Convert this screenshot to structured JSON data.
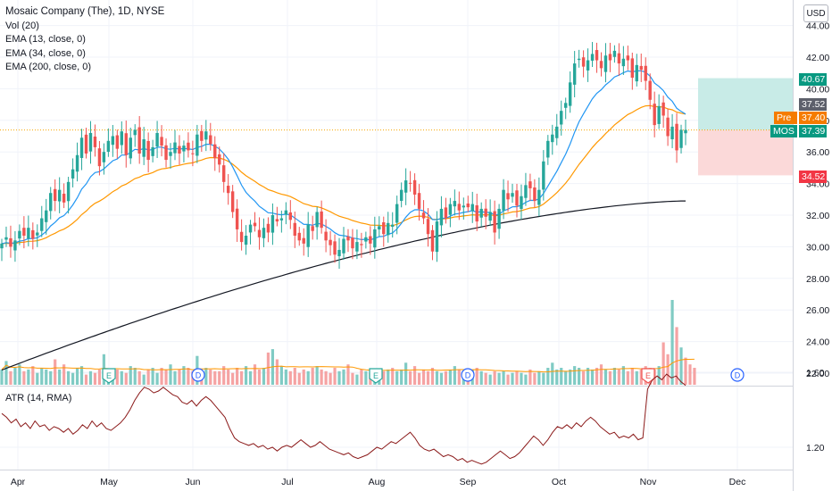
{
  "legend": {
    "title": "Mosaic Company (The), 1D, NYSE",
    "indicators": [
      "Vol (20)",
      "EMA (13, close, 0)",
      "EMA (34, close, 0)",
      "EMA (200, close, 0)"
    ],
    "atr": "ATR (14, RMA)"
  },
  "currency": "USD",
  "tags": {
    "target": "40.67",
    "ema_upper": "37.52",
    "pre_label": "Pre",
    "pre_value": "37.40",
    "symbol": "MOS",
    "last": "37.39",
    "stop": "34.52"
  },
  "colors": {
    "up": "#26a69a",
    "down": "#ef5350",
    "vol_up": "#80cbc4",
    "vol_down": "#f5a3a3",
    "ema13": "#2196f3",
    "ema34": "#ff9800",
    "ema200": "#131722",
    "atr": "#8b1a1a",
    "target_zone": "#c8ebe7",
    "stop_zone": "#fbd9d9"
  },
  "chart_data": [
    {
      "type": "candlestick",
      "title": "Mosaic Company (The), 1D, NYSE",
      "y_ticks": [
        22.0,
        24.0,
        26.0,
        28.0,
        30.0,
        32.0,
        34.0,
        36.0,
        38.0,
        40.0,
        42.0,
        44.0
      ],
      "ylim": [
        21.3,
        44.5
      ],
      "x_labels": [
        "Apr",
        "May",
        "Jun",
        "Jul",
        "Aug",
        "Sep",
        "Oct",
        "Nov",
        "Dec"
      ],
      "close_series": [
        30.2,
        30.6,
        30.0,
        30.4,
        31.0,
        30.7,
        31.2,
        30.5,
        30.9,
        31.8,
        32.3,
        33.4,
        32.9,
        33.6,
        32.8,
        34.1,
        34.9,
        35.8,
        36.9,
        35.9,
        37.2,
        36.3,
        35.1,
        36.0,
        36.7,
        37.0,
        36.2,
        37.3,
        35.8,
        36.9,
        37.4,
        35.9,
        36.8,
        35.5,
        36.3,
        37.2,
        36.4,
        35.5,
        36.0,
        36.6,
        35.9,
        36.4,
        36.1,
        35.9,
        37.1,
        36.7,
        37.3,
        36.5,
        35.6,
        35.2,
        34.1,
        33.4,
        32.2,
        31.1,
        30.3,
        30.7,
        31.4,
        31.3,
        30.6,
        31.2,
        30.9,
        32.0,
        31.6,
        31.8,
        32.3,
        31.7,
        30.7,
        30.4,
        30.2,
        31.4,
        31.0,
        32.2,
        31.2,
        30.4,
        30.1,
        29.5,
        29.8,
        30.5,
        30.4,
        29.9,
        30.3,
        30.1,
        30.6,
        30.2,
        31.1,
        31.3,
        30.8,
        31.5,
        31.4,
        32.7,
        33.6,
        34.2,
        34.0,
        33.3,
        32.4,
        31.8,
        30.8,
        29.7,
        31.6,
        32.4,
        31.8,
        32.7,
        32.9,
        32.3,
        32.6,
        32.5,
        32.7,
        31.6,
        32.4,
        31.9,
        32.2,
        30.9,
        32.4,
        33.6,
        33.0,
        33.4,
        32.6,
        33.2,
        33.9,
        33.7,
        32.9,
        33.6,
        35.4,
        36.7,
        37.1,
        37.6,
        38.6,
        39.1,
        40.4,
        41.6,
        41.9,
        41.4,
        41.8,
        42.2,
        41.8,
        41.3,
        42.1,
        41.8,
        42.4,
        41.6,
        41.9,
        41.8,
        40.7,
        41.5,
        41.2,
        40.5,
        39.3,
        37.7,
        38.9,
        38.3,
        37.0,
        37.6,
        36.1,
        37.4,
        37.39
      ],
      "ema13_endpoints": [
        31.2,
        37.5
      ],
      "ema34_endpoints": [
        30.6,
        38.1
      ],
      "ema200_endpoints": [
        22.2,
        32.9
      ],
      "position": {
        "target": 40.67,
        "entry": 37.39,
        "stop": 34.52
      }
    },
    {
      "type": "bar",
      "title": "Vol (20)",
      "values": [
        0.9,
        1.4,
        0.8,
        1.0,
        1.2,
        0.8,
        0.9,
        1.1,
        0.7,
        1.0,
        0.9,
        0.8,
        1.5,
        0.9,
        1.2,
        0.8,
        0.7,
        1.0,
        1.1,
        0.6,
        0.8,
        0.7,
        0.9,
        1.8,
        0.8,
        0.7,
        0.9,
        0.8,
        0.7,
        1.1,
        1.0,
        0.8,
        0.6,
        0.9,
        1.0,
        0.7,
        1.0,
        0.9,
        1.2,
        0.8,
        0.9,
        1.1,
        1.0,
        0.8,
        1.7,
        0.7,
        1.0,
        0.9,
        0.8,
        0.8,
        1.1,
        0.9,
        0.7,
        1.0,
        0.8,
        1.1,
        0.8,
        1.2,
        0.9,
        1.0,
        1.9,
        2.1,
        1.5,
        1.1,
        0.9,
        0.8,
        1.0,
        0.7,
        0.9,
        0.8,
        1.0,
        1.1,
        0.9,
        0.8,
        0.7,
        1.0,
        0.8,
        0.9,
        1.2,
        0.7,
        0.6,
        0.9,
        0.8,
        0.7,
        0.8,
        0.9,
        0.8,
        0.9,
        1.0,
        0.8,
        0.9,
        1.3,
        0.8,
        1.1,
        0.7,
        0.9,
        0.8,
        1.0,
        0.8,
        0.7,
        0.8,
        0.9,
        1.1,
        0.9,
        0.8,
        0.7,
        0.9,
        1.0,
        0.8,
        0.7,
        0.6,
        0.8,
        0.7,
        0.8,
        0.6,
        0.7,
        0.8,
        0.7,
        0.6,
        0.9,
        0.7,
        0.8,
        0.7,
        1.0,
        1.3,
        0.9,
        1.0,
        0.8,
        0.9,
        1.1,
        1.0,
        0.8,
        1.0,
        0.9,
        1.0,
        1.2,
        0.9,
        0.8,
        1.0,
        0.9,
        1.1,
        0.8,
        1.0,
        0.8,
        0.9,
        1.1,
        1.0,
        0.9,
        1.1,
        2.5,
        1.8,
        5.0,
        3.4,
        2.2,
        1.6,
        1.2,
        1.0
      ],
      "earnings_markers": [
        "E",
        "E",
        "E"
      ],
      "dividend_markers": [
        "D",
        "D",
        "D"
      ]
    },
    {
      "type": "line",
      "title": "ATR (14, RMA)",
      "y_ticks": [
        1.2,
        1.6
      ],
      "ylim": [
        1.06,
        1.68
      ],
      "values": [
        1.38,
        1.36,
        1.33,
        1.35,
        1.31,
        1.33,
        1.3,
        1.34,
        1.31,
        1.32,
        1.29,
        1.31,
        1.3,
        1.28,
        1.3,
        1.27,
        1.29,
        1.32,
        1.3,
        1.34,
        1.31,
        1.33,
        1.3,
        1.29,
        1.31,
        1.33,
        1.36,
        1.4,
        1.45,
        1.49,
        1.52,
        1.51,
        1.49,
        1.5,
        1.52,
        1.5,
        1.48,
        1.47,
        1.44,
        1.43,
        1.45,
        1.42,
        1.45,
        1.47,
        1.45,
        1.42,
        1.39,
        1.36,
        1.3,
        1.25,
        1.23,
        1.22,
        1.21,
        1.22,
        1.2,
        1.21,
        1.19,
        1.2,
        1.18,
        1.2,
        1.21,
        1.2,
        1.22,
        1.24,
        1.22,
        1.2,
        1.21,
        1.23,
        1.21,
        1.19,
        1.18,
        1.17,
        1.16,
        1.17,
        1.15,
        1.14,
        1.15,
        1.16,
        1.18,
        1.2,
        1.19,
        1.21,
        1.23,
        1.22,
        1.24,
        1.26,
        1.28,
        1.25,
        1.21,
        1.19,
        1.18,
        1.19,
        1.17,
        1.15,
        1.16,
        1.15,
        1.13,
        1.14,
        1.12,
        1.13,
        1.12,
        1.11,
        1.12,
        1.14,
        1.16,
        1.18,
        1.16,
        1.14,
        1.15,
        1.17,
        1.2,
        1.23,
        1.26,
        1.24,
        1.21,
        1.24,
        1.28,
        1.31,
        1.3,
        1.32,
        1.3,
        1.33,
        1.31,
        1.34,
        1.36,
        1.34,
        1.31,
        1.29,
        1.27,
        1.28,
        1.25,
        1.26,
        1.25,
        1.27,
        1.24,
        1.25,
        1.51,
        1.56,
        1.58,
        1.56,
        1.59,
        1.57,
        1.58,
        1.55,
        1.53
      ]
    }
  ]
}
